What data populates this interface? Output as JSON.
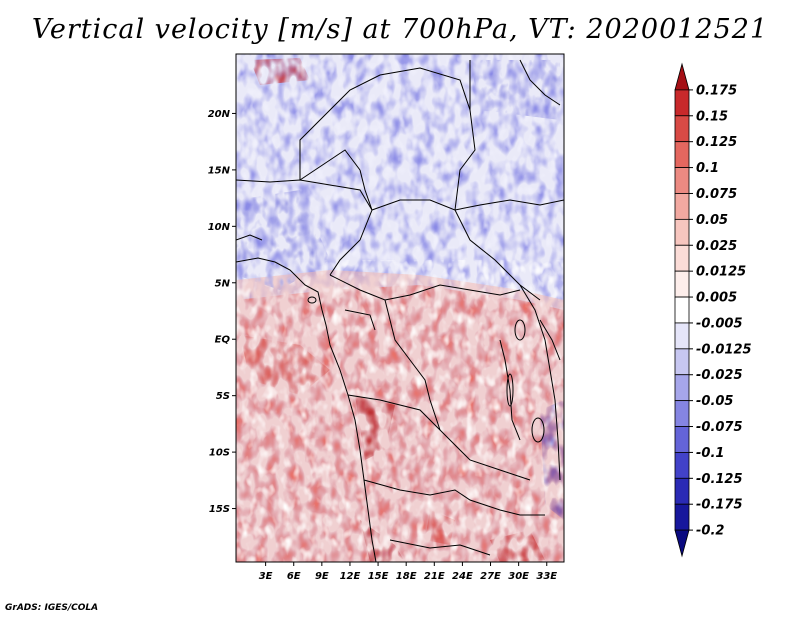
{
  "title": "Vertical velocity [m/s] at 700hPa, VT: 2020012521",
  "footer": "GrADS: IGES/COLA",
  "map": {
    "lon_range": [
      0,
      35
    ],
    "lat_range": [
      -20,
      25
    ],
    "x_ticks": [
      "3E",
      "6E",
      "9E",
      "12E",
      "15E",
      "18E",
      "21E",
      "24E",
      "27E",
      "30E",
      "33E"
    ],
    "y_ticks": [
      "20N",
      "15N",
      "10N",
      "5N",
      "EQ",
      "5S",
      "10S",
      "15S"
    ],
    "x_tick_values": [
      3,
      6,
      9,
      12,
      15,
      18,
      21,
      24,
      27,
      30,
      33
    ],
    "y_tick_values": [
      20,
      15,
      10,
      5,
      0,
      -5,
      -10,
      -15
    ]
  },
  "colorbar": {
    "labels": [
      "0.175",
      "0.15",
      "0.125",
      "0.1",
      "0.075",
      "0.05",
      "0.025",
      "0.0125",
      "0.005",
      "-0.005",
      "-0.0125",
      "-0.025",
      "-0.05",
      "-0.075",
      "-0.1",
      "-0.125",
      "-0.175",
      "-0.2"
    ],
    "colors": [
      "#a50f15",
      "#c8292b",
      "#d84a45",
      "#e4675f",
      "#ec8a82",
      "#f2a9a1",
      "#f7c6bf",
      "#fbdcd7",
      "#fdeeeb",
      "#ffffff",
      "#e5e5f9",
      "#c7c7f1",
      "#a6a6ea",
      "#8585e2",
      "#6464d8",
      "#4242c9",
      "#2a2ab5",
      "#17179c",
      "#0a0a80"
    ]
  },
  "colors": {
    "positive": "#d94a45",
    "negative": "#6f6fe0",
    "border": "#000000"
  }
}
